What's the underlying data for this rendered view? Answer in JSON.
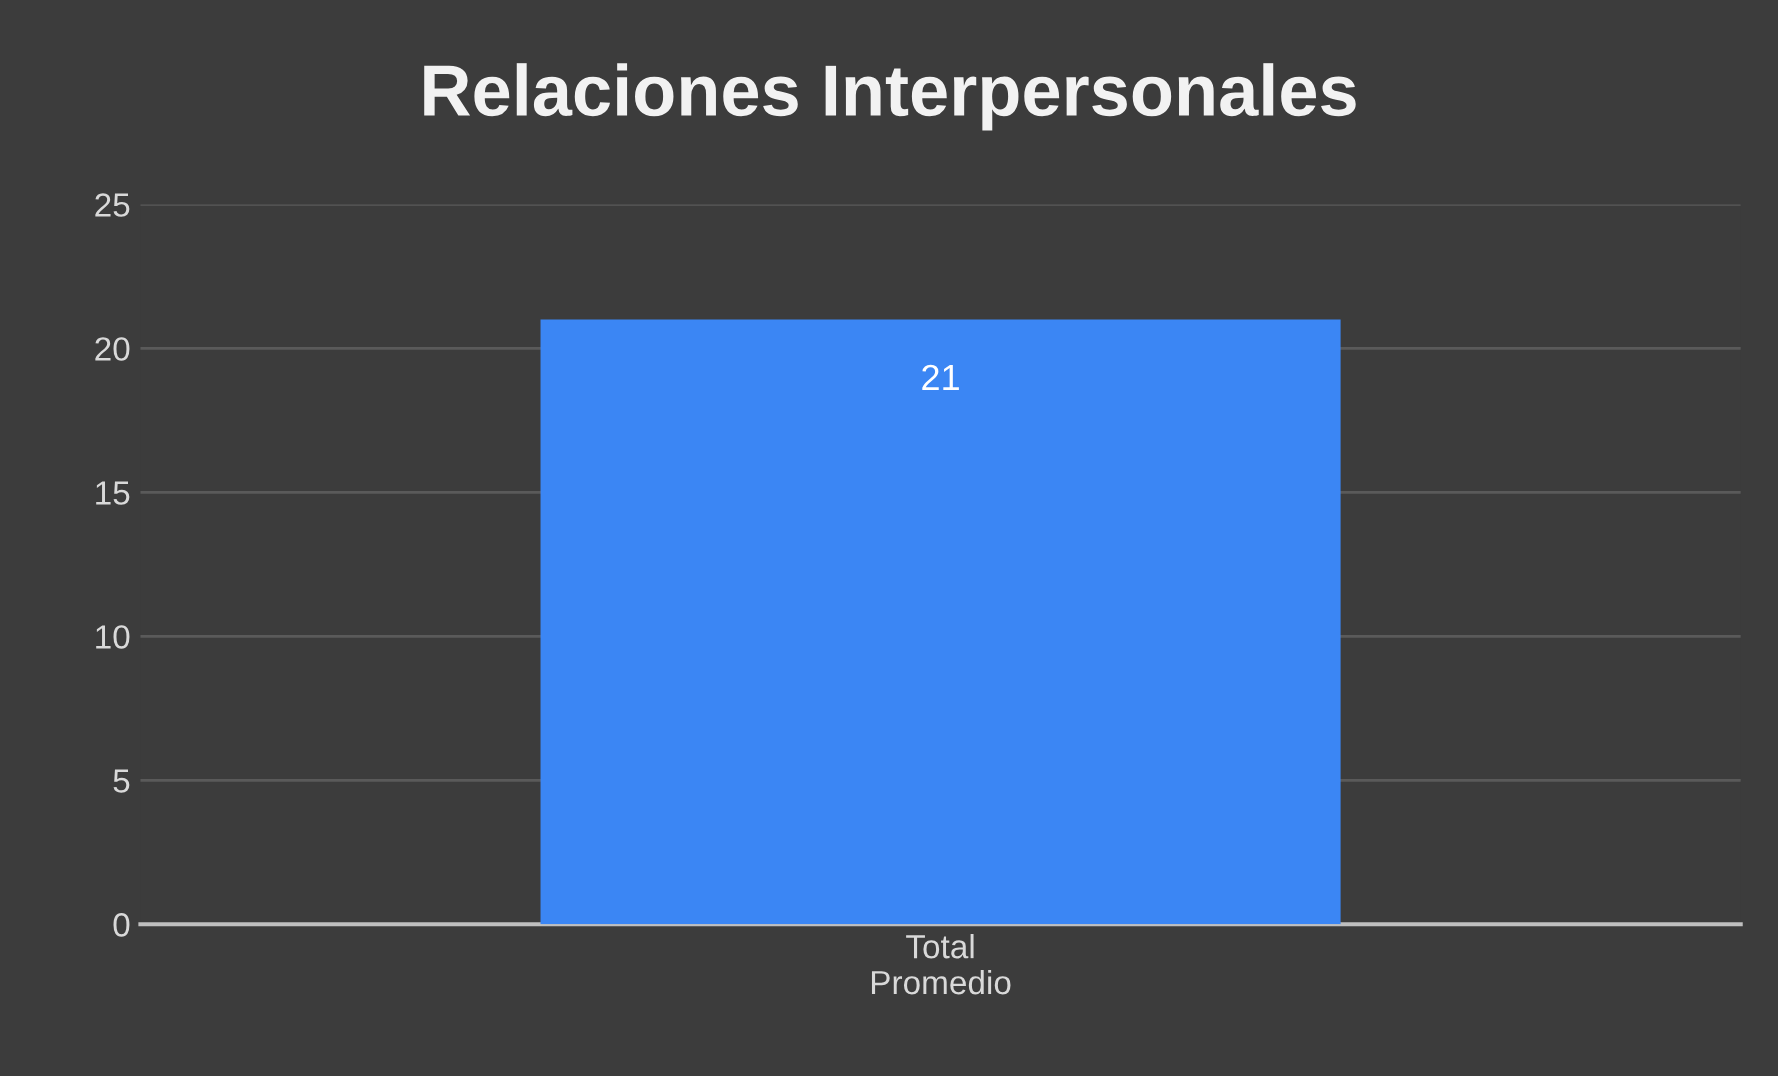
{
  "chart_data": {
    "type": "bar",
    "title": "Relaciones Interpersonales",
    "categories": [
      "Total\nPromedio"
    ],
    "values": [
      21
    ],
    "color": "#3b86f4",
    "ylim": [
      0,
      25
    ],
    "yticks": [
      0,
      5,
      10,
      15,
      20,
      25
    ],
    "grid": "y",
    "data_labels": true
  }
}
